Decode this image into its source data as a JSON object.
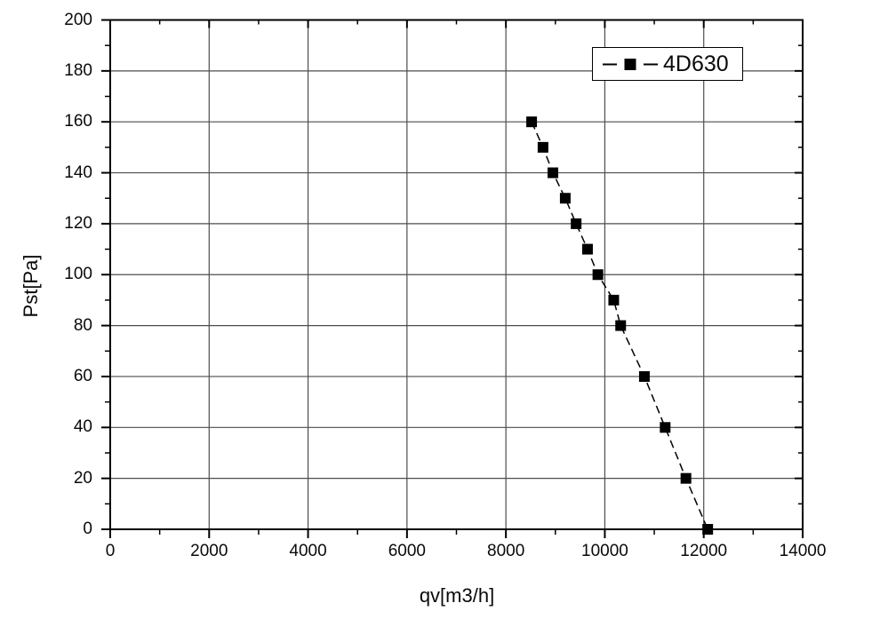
{
  "figure": {
    "background": "#ffffff",
    "foreground": "#000000",
    "gridline_color": "#4d4d4d"
  },
  "chart_data": {
    "type": "line",
    "title": "",
    "xlabel": "qv[m3/h]",
    "ylabel": "Pst[Pa]",
    "xlim": [
      0,
      14000
    ],
    "ylim": [
      0,
      200
    ],
    "x_major_tick_step": 2000,
    "x_minor_tick_step": 1000,
    "y_major_tick_step": 20,
    "y_minor_tick_step": 10,
    "x_tick_labels": [
      "0",
      "2000",
      "4000",
      "6000",
      "8000",
      "10000",
      "12000",
      "14000"
    ],
    "y_tick_labels": [
      "0",
      "20",
      "40",
      "60",
      "80",
      "100",
      "120",
      "140",
      "160",
      "180",
      "200"
    ],
    "grid": "major-both",
    "legend": {
      "position": "top-right",
      "entries": [
        "4D630"
      ]
    },
    "series": [
      {
        "name": "4D630",
        "color": "#000000",
        "marker": "filled-square",
        "marker_size": 12,
        "line_style": "dashed",
        "x": [
          8520,
          8750,
          8950,
          9200,
          9420,
          9650,
          9860,
          10180,
          10320,
          10800,
          11220,
          11640,
          12080
        ],
        "y": [
          160,
          150,
          140,
          130,
          120,
          110,
          100,
          90,
          80,
          60,
          40,
          20,
          0
        ]
      }
    ]
  }
}
